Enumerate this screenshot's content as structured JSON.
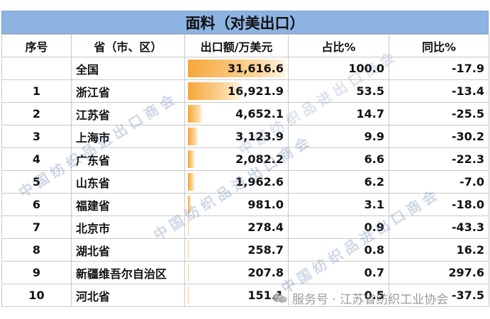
{
  "title": "面料（对美出口）",
  "headers": {
    "rank": "序号",
    "province": "省（市、区）",
    "export": "出口额/万美元",
    "share": "占比%",
    "yoy": "同比%"
  },
  "total": {
    "name": "全国",
    "export": "31,616.6",
    "export_value": 31616.6,
    "share": "100.0",
    "yoy": "-17.9"
  },
  "rows": [
    {
      "rank": "1",
      "name": "浙江省",
      "export": "16,921.9",
      "export_value": 16921.9,
      "share": "53.5",
      "yoy": "-13.4"
    },
    {
      "rank": "2",
      "name": "江苏省",
      "export": "4,652.1",
      "export_value": 4652.1,
      "share": "14.7",
      "yoy": "-25.5"
    },
    {
      "rank": "3",
      "name": "上海市",
      "export": "3,123.9",
      "export_value": 3123.9,
      "share": "9.9",
      "yoy": "-30.2"
    },
    {
      "rank": "4",
      "name": "广东省",
      "export": "2,082.2",
      "export_value": 2082.2,
      "share": "6.6",
      "yoy": "-22.3"
    },
    {
      "rank": "5",
      "name": "山东省",
      "export": "1,962.6",
      "export_value": 1962.6,
      "share": "6.2",
      "yoy": "-7.0"
    },
    {
      "rank": "6",
      "name": "福建省",
      "export": "981.0",
      "export_value": 981.0,
      "share": "3.1",
      "yoy": "-18.0"
    },
    {
      "rank": "7",
      "name": "北京市",
      "export": "278.4",
      "export_value": 278.4,
      "share": "0.9",
      "yoy": "-43.3"
    },
    {
      "rank": "8",
      "name": "湖北省",
      "export": "258.7",
      "export_value": 258.7,
      "share": "0.8",
      "yoy": "16.2"
    },
    {
      "rank": "9",
      "name": "新疆维吾尔自治区",
      "export": "207.8",
      "export_value": 207.8,
      "share": "0.7",
      "yoy": "297.6"
    },
    {
      "rank": "10",
      "name": "河北省",
      "export": "151.1",
      "export_value": 151.1,
      "share": "0.5",
      "yoy": "-37.5"
    }
  ],
  "watermarks": {
    "association": "中国纺织品进出口商会",
    "wechat": "服务号 · 江苏省纺织工业协会",
    "wechat_icon": "wechat-icon"
  },
  "colors": {
    "title_bg": "#8db3e2",
    "bar": "#f6a73a",
    "watermark": "#506eaa"
  }
}
